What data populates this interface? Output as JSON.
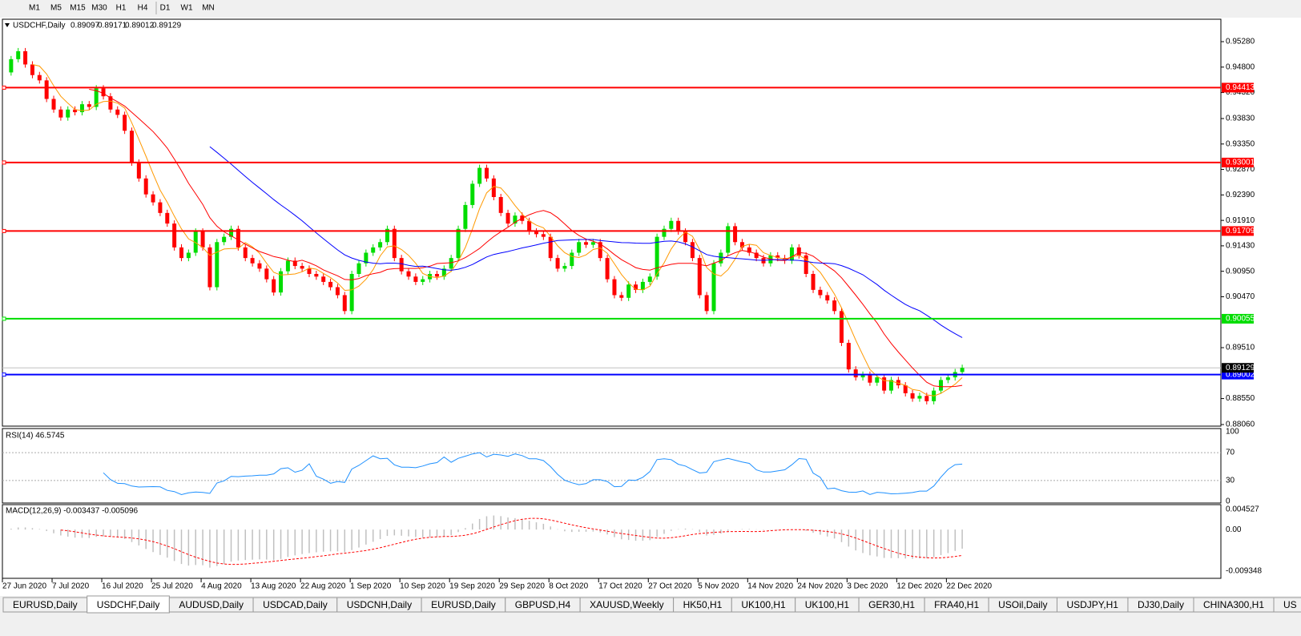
{
  "toolbar": {
    "timeframes": [
      "M1",
      "M5",
      "M15",
      "M30",
      "H1",
      "H4",
      "D1",
      "W1",
      "MN"
    ]
  },
  "tabs": [
    "EURUSD,Daily",
    "USDCHF,Daily",
    "AUDUSD,Daily",
    "USDCAD,Daily",
    "USDCNH,Daily",
    "EURUSD,Daily",
    "GBPUSD,H4",
    "XAUUSD,Weekly",
    "HK50,H1",
    "UK100,H1",
    "UK100,H1",
    "GER30,H1",
    "FRA40,H1",
    "USOil,Daily",
    "USDJPY,H1",
    "DJ30,Daily",
    "CHINA300,H1",
    "US"
  ],
  "active_tab": 1,
  "chart_data": [
    {
      "type": "candlestick",
      "title": "USDCHF,Daily",
      "header_values": [
        0.89097,
        0.89171,
        0.89012,
        0.89129
      ],
      "up_color": "#00dd00",
      "down_color": "#ff0000",
      "categories": [
        "27 Jun 2020",
        null,
        null,
        null,
        null,
        null,
        null,
        "7 Jul 2020",
        null,
        null,
        null,
        null,
        null,
        null,
        "16 Jul 2020",
        null,
        null,
        null,
        null,
        null,
        null,
        "25 Jul 2020",
        null,
        null,
        null,
        null,
        null,
        null,
        "4 Aug 2020",
        null,
        null,
        null,
        null,
        null,
        null,
        "13 Aug 2020",
        null,
        null,
        null,
        null,
        null,
        null,
        "22 Aug 2020",
        null,
        null,
        null,
        null,
        null,
        null,
        "1 Sep 2020",
        null,
        null,
        null,
        null,
        null,
        null,
        "10 Sep 2020",
        null,
        null,
        null,
        null,
        null,
        null,
        "19 Sep 2020",
        null,
        null,
        null,
        null,
        null,
        null,
        "29 Sep 2020",
        null,
        null,
        null,
        null,
        null,
        null,
        "8 Oct 2020",
        null,
        null,
        null,
        null,
        null,
        null,
        "17 Oct 2020",
        null,
        null,
        null,
        null,
        null,
        null,
        "27 Oct 2020",
        null,
        null,
        null,
        null,
        null,
        null,
        "5 Nov 2020",
        null,
        null,
        null,
        null,
        null,
        null,
        "14 Nov 2020",
        null,
        null,
        null,
        null,
        null,
        null,
        "24 Nov 2020",
        null,
        null,
        null,
        null,
        null,
        null,
        "3 Dec 2020",
        null,
        null,
        null,
        null,
        null,
        null,
        "12 Dec 2020",
        null,
        null,
        null,
        null,
        null,
        null,
        "22 Dec 2020",
        null,
        null
      ],
      "values": [
        0.947,
        0.9495,
        0.951,
        0.9485,
        0.9465,
        0.9455,
        0.942,
        0.94,
        0.9385,
        0.94,
        0.9395,
        0.941,
        0.9405,
        0.944,
        0.9425,
        0.94,
        0.939,
        0.936,
        0.93,
        0.927,
        0.924,
        0.9225,
        0.9205,
        0.9185,
        0.914,
        0.912,
        0.913,
        0.917,
        0.914,
        0.9065,
        0.915,
        0.916,
        0.9175,
        0.914,
        0.912,
        0.911,
        0.91,
        0.908,
        0.9055,
        0.9095,
        0.9115,
        0.9105,
        0.91,
        0.909,
        0.9085,
        0.9075,
        0.9065,
        0.905,
        0.902,
        0.909,
        0.911,
        0.913,
        0.914,
        0.915,
        0.9175,
        0.912,
        0.9095,
        0.9085,
        0.9075,
        0.908,
        0.909,
        0.9085,
        0.91,
        0.912,
        0.9175,
        0.922,
        0.926,
        0.929,
        0.927,
        0.9235,
        0.9205,
        0.9185,
        0.92,
        0.919,
        0.917,
        0.9165,
        0.916,
        0.912,
        0.91,
        0.9105,
        0.913,
        0.915,
        0.9145,
        0.915,
        0.912,
        0.908,
        0.905,
        0.9045,
        0.907,
        0.906,
        0.9075,
        0.9085,
        0.916,
        0.9175,
        0.919,
        0.917,
        0.915,
        0.912,
        0.905,
        0.902,
        0.911,
        0.913,
        0.918,
        0.915,
        0.914,
        0.913,
        0.912,
        0.911,
        0.9125,
        0.912,
        0.9115,
        0.914,
        0.9125,
        0.909,
        0.906,
        0.905,
        0.904,
        0.902,
        0.896,
        0.891,
        0.8895,
        0.89,
        0.8885,
        0.8895,
        0.887,
        0.889,
        0.888,
        0.8865,
        0.8855,
        0.886,
        0.885,
        0.887,
        0.889,
        0.8895,
        0.8905,
        0.89129
      ],
      "ylim": [
        0.8803,
        0.95703
      ],
      "yticks": [
        {
          "value": 0.9528,
          "label": "0.95280"
        },
        {
          "value": 0.948,
          "label": "0.94800"
        },
        {
          "value": 0.9432,
          "label": "0.94320"
        },
        {
          "value": 0.9383,
          "label": "0.93830"
        },
        {
          "value": 0.9335,
          "label": "0.93350"
        },
        {
          "value": 0.9287,
          "label": "0.92870"
        },
        {
          "value": 0.9239,
          "label": "0.92390"
        },
        {
          "value": 0.9191,
          "label": "0.91910"
        },
        {
          "value": 0.9143,
          "label": "0.91430"
        },
        {
          "value": 0.9095,
          "label": "0.90950"
        },
        {
          "value": 0.9047,
          "label": "0.90470"
        },
        {
          "value": 0.8951,
          "label": "0.89510"
        },
        {
          "value": 0.8855,
          "label": "0.88550"
        },
        {
          "value": 0.8806,
          "label": "0.88060"
        }
      ],
      "levels": [
        {
          "value": 0.94413,
          "color": "#ff0000"
        },
        {
          "value": 0.93001,
          "color": "#ff0000"
        },
        {
          "value": 0.91709,
          "color": "#ff0000"
        },
        {
          "value": 0.90055,
          "color": "#00dd00"
        },
        {
          "value": 0.89002,
          "color": "#0000ff"
        }
      ],
      "current_price": 0.89129
    },
    {
      "type": "rsi",
      "title": "RSI(14) 46.5745",
      "period": 14,
      "color": "#1e90ff",
      "ylim": [
        0,
        100
      ],
      "yticks": [
        100,
        70,
        30,
        0
      ]
    },
    {
      "type": "macd",
      "title": "MACD(12,26,9) -0.003437 -0.005096",
      "periods": [
        12,
        26,
        9
      ],
      "color": "#c0c0c0",
      "signal_color": "#ff0000",
      "ylim": [
        -0.009348,
        0.004527
      ],
      "yticks": [
        0.004527,
        {
          "value": 0,
          "label": "0.00"
        },
        -0.009348
      ]
    }
  ]
}
